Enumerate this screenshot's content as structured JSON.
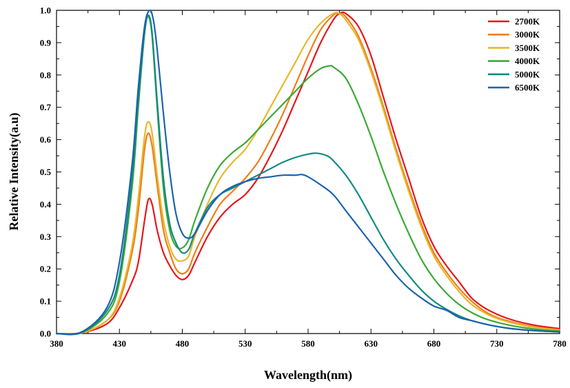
{
  "chart_data": {
    "type": "line",
    "xlabel": "Wavelength(nm)",
    "ylabel": "Relative Intensity(a.u)",
    "xlim": [
      380,
      780
    ],
    "ylim": [
      0.0,
      1.0
    ],
    "x_ticks": [
      "380",
      "430",
      "480",
      "530",
      "580",
      "630",
      "680",
      "730",
      "780"
    ],
    "y_ticks": [
      "0.0",
      "0.1",
      "0.2",
      "0.3",
      "0.4",
      "0.5",
      "0.6",
      "0.7",
      "0.8",
      "0.9",
      "1.0"
    ],
    "grid": false,
    "legend_position": "top-right",
    "series": [
      {
        "name": "2700K",
        "color": "#e8151b",
        "points": [
          [
            380,
            0.0
          ],
          [
            400,
            0.002
          ],
          [
            420,
            0.03
          ],
          [
            430,
            0.08
          ],
          [
            440,
            0.16
          ],
          [
            445,
            0.22
          ],
          [
            450,
            0.35
          ],
          [
            453,
            0.415
          ],
          [
            456,
            0.4
          ],
          [
            460,
            0.32
          ],
          [
            465,
            0.25
          ],
          [
            470,
            0.21
          ],
          [
            475,
            0.18
          ],
          [
            480,
            0.167
          ],
          [
            485,
            0.18
          ],
          [
            490,
            0.22
          ],
          [
            500,
            0.3
          ],
          [
            510,
            0.36
          ],
          [
            520,
            0.4
          ],
          [
            530,
            0.43
          ],
          [
            540,
            0.48
          ],
          [
            550,
            0.55
          ],
          [
            560,
            0.63
          ],
          [
            570,
            0.72
          ],
          [
            580,
            0.81
          ],
          [
            590,
            0.9
          ],
          [
            600,
            0.97
          ],
          [
            605,
            0.99
          ],
          [
            610,
            0.99
          ],
          [
            620,
            0.95
          ],
          [
            630,
            0.86
          ],
          [
            640,
            0.73
          ],
          [
            650,
            0.6
          ],
          [
            660,
            0.48
          ],
          [
            670,
            0.36
          ],
          [
            680,
            0.27
          ],
          [
            690,
            0.21
          ],
          [
            700,
            0.16
          ],
          [
            710,
            0.11
          ],
          [
            720,
            0.08
          ],
          [
            730,
            0.06
          ],
          [
            740,
            0.045
          ],
          [
            750,
            0.034
          ],
          [
            760,
            0.026
          ],
          [
            770,
            0.02
          ],
          [
            780,
            0.015
          ]
        ]
      },
      {
        "name": "3000K",
        "color": "#f07d16",
        "points": [
          [
            380,
            0.0
          ],
          [
            400,
            0.002
          ],
          [
            420,
            0.04
          ],
          [
            430,
            0.1
          ],
          [
            440,
            0.25
          ],
          [
            445,
            0.38
          ],
          [
            450,
            0.57
          ],
          [
            453,
            0.62
          ],
          [
            456,
            0.58
          ],
          [
            460,
            0.46
          ],
          [
            465,
            0.32
          ],
          [
            470,
            0.25
          ],
          [
            475,
            0.2
          ],
          [
            480,
            0.185
          ],
          [
            485,
            0.2
          ],
          [
            490,
            0.25
          ],
          [
            500,
            0.33
          ],
          [
            510,
            0.4
          ],
          [
            520,
            0.44
          ],
          [
            530,
            0.48
          ],
          [
            540,
            0.53
          ],
          [
            550,
            0.6
          ],
          [
            560,
            0.68
          ],
          [
            570,
            0.77
          ],
          [
            580,
            0.86
          ],
          [
            590,
            0.94
          ],
          [
            600,
            0.985
          ],
          [
            605,
            0.99
          ],
          [
            610,
            0.98
          ],
          [
            620,
            0.92
          ],
          [
            630,
            0.82
          ],
          [
            640,
            0.7
          ],
          [
            650,
            0.57
          ],
          [
            660,
            0.45
          ],
          [
            670,
            0.34
          ],
          [
            680,
            0.25
          ],
          [
            690,
            0.19
          ],
          [
            700,
            0.14
          ],
          [
            710,
            0.1
          ],
          [
            720,
            0.07
          ],
          [
            730,
            0.05
          ],
          [
            740,
            0.038
          ],
          [
            750,
            0.028
          ],
          [
            760,
            0.021
          ],
          [
            770,
            0.016
          ],
          [
            780,
            0.012
          ]
        ]
      },
      {
        "name": "3500K",
        "color": "#e6b82a",
        "points": [
          [
            380,
            0.0
          ],
          [
            400,
            0.002
          ],
          [
            420,
            0.04
          ],
          [
            430,
            0.11
          ],
          [
            440,
            0.27
          ],
          [
            445,
            0.42
          ],
          [
            450,
            0.61
          ],
          [
            453,
            0.655
          ],
          [
            456,
            0.62
          ],
          [
            460,
            0.49
          ],
          [
            465,
            0.35
          ],
          [
            470,
            0.27
          ],
          [
            475,
            0.23
          ],
          [
            480,
            0.225
          ],
          [
            485,
            0.24
          ],
          [
            490,
            0.3
          ],
          [
            500,
            0.4
          ],
          [
            510,
            0.48
          ],
          [
            520,
            0.53
          ],
          [
            530,
            0.57
          ],
          [
            540,
            0.63
          ],
          [
            550,
            0.7
          ],
          [
            560,
            0.77
          ],
          [
            570,
            0.84
          ],
          [
            580,
            0.91
          ],
          [
            590,
            0.96
          ],
          [
            600,
            0.99
          ],
          [
            605,
            0.99
          ],
          [
            610,
            0.97
          ],
          [
            620,
            0.91
          ],
          [
            630,
            0.81
          ],
          [
            640,
            0.69
          ],
          [
            650,
            0.56
          ],
          [
            660,
            0.44
          ],
          [
            670,
            0.33
          ],
          [
            680,
            0.24
          ],
          [
            690,
            0.18
          ],
          [
            700,
            0.13
          ],
          [
            710,
            0.09
          ],
          [
            720,
            0.065
          ],
          [
            730,
            0.047
          ],
          [
            740,
            0.035
          ],
          [
            750,
            0.026
          ],
          [
            760,
            0.019
          ],
          [
            770,
            0.014
          ],
          [
            780,
            0.01
          ]
        ]
      },
      {
        "name": "4000K",
        "color": "#3aa935",
        "points": [
          [
            380,
            0.0
          ],
          [
            400,
            0.003
          ],
          [
            420,
            0.06
          ],
          [
            430,
            0.16
          ],
          [
            440,
            0.45
          ],
          [
            445,
            0.7
          ],
          [
            450,
            0.93
          ],
          [
            453,
            0.98
          ],
          [
            456,
            0.92
          ],
          [
            460,
            0.7
          ],
          [
            465,
            0.45
          ],
          [
            470,
            0.32
          ],
          [
            475,
            0.27
          ],
          [
            480,
            0.265
          ],
          [
            485,
            0.29
          ],
          [
            490,
            0.35
          ],
          [
            500,
            0.45
          ],
          [
            510,
            0.52
          ],
          [
            520,
            0.56
          ],
          [
            530,
            0.59
          ],
          [
            540,
            0.63
          ],
          [
            550,
            0.67
          ],
          [
            560,
            0.71
          ],
          [
            570,
            0.75
          ],
          [
            580,
            0.79
          ],
          [
            590,
            0.82
          ],
          [
            597,
            0.828
          ],
          [
            600,
            0.825
          ],
          [
            610,
            0.79
          ],
          [
            620,
            0.71
          ],
          [
            630,
            0.61
          ],
          [
            640,
            0.5
          ],
          [
            650,
            0.4
          ],
          [
            660,
            0.31
          ],
          [
            670,
            0.23
          ],
          [
            680,
            0.17
          ],
          [
            690,
            0.125
          ],
          [
            700,
            0.09
          ],
          [
            710,
            0.065
          ],
          [
            720,
            0.047
          ],
          [
            730,
            0.035
          ],
          [
            740,
            0.026
          ],
          [
            750,
            0.019
          ],
          [
            760,
            0.014
          ],
          [
            770,
            0.01
          ],
          [
            780,
            0.008
          ]
        ]
      },
      {
        "name": "5000K",
        "color": "#138a82",
        "points": [
          [
            380,
            0.0
          ],
          [
            400,
            0.003
          ],
          [
            420,
            0.07
          ],
          [
            430,
            0.18
          ],
          [
            440,
            0.48
          ],
          [
            445,
            0.72
          ],
          [
            450,
            0.93
          ],
          [
            453,
            0.985
          ],
          [
            456,
            0.93
          ],
          [
            460,
            0.72
          ],
          [
            465,
            0.48
          ],
          [
            470,
            0.34
          ],
          [
            475,
            0.28
          ],
          [
            480,
            0.25
          ],
          [
            485,
            0.26
          ],
          [
            490,
            0.31
          ],
          [
            500,
            0.39
          ],
          [
            510,
            0.43
          ],
          [
            520,
            0.45
          ],
          [
            530,
            0.47
          ],
          [
            540,
            0.49
          ],
          [
            550,
            0.51
          ],
          [
            560,
            0.53
          ],
          [
            570,
            0.545
          ],
          [
            580,
            0.555
          ],
          [
            587,
            0.558
          ],
          [
            595,
            0.55
          ],
          [
            600,
            0.535
          ],
          [
            610,
            0.49
          ],
          [
            620,
            0.43
          ],
          [
            630,
            0.36
          ],
          [
            640,
            0.29
          ],
          [
            650,
            0.23
          ],
          [
            660,
            0.18
          ],
          [
            670,
            0.135
          ],
          [
            680,
            0.1
          ],
          [
            690,
            0.075
          ],
          [
            700,
            0.055
          ],
          [
            710,
            0.04
          ],
          [
            720,
            0.03
          ],
          [
            730,
            0.022
          ],
          [
            740,
            0.016
          ],
          [
            750,
            0.012
          ],
          [
            760,
            0.009
          ],
          [
            770,
            0.007
          ],
          [
            780,
            0.005
          ]
        ]
      },
      {
        "name": "6500K",
        "color": "#1c62ae",
        "points": [
          [
            380,
            0.0
          ],
          [
            400,
            0.005
          ],
          [
            420,
            0.08
          ],
          [
            430,
            0.22
          ],
          [
            440,
            0.52
          ],
          [
            445,
            0.76
          ],
          [
            450,
            0.95
          ],
          [
            454,
            1.0
          ],
          [
            457,
            0.97
          ],
          [
            460,
            0.88
          ],
          [
            465,
            0.68
          ],
          [
            470,
            0.5
          ],
          [
            475,
            0.37
          ],
          [
            480,
            0.31
          ],
          [
            485,
            0.295
          ],
          [
            490,
            0.31
          ],
          [
            500,
            0.38
          ],
          [
            510,
            0.43
          ],
          [
            520,
            0.455
          ],
          [
            530,
            0.47
          ],
          [
            540,
            0.48
          ],
          [
            550,
            0.485
          ],
          [
            560,
            0.49
          ],
          [
            570,
            0.49
          ],
          [
            575,
            0.492
          ],
          [
            580,
            0.485
          ],
          [
            590,
            0.46
          ],
          [
            600,
            0.43
          ],
          [
            610,
            0.38
          ],
          [
            620,
            0.33
          ],
          [
            630,
            0.28
          ],
          [
            640,
            0.23
          ],
          [
            650,
            0.18
          ],
          [
            660,
            0.14
          ],
          [
            670,
            0.11
          ],
          [
            680,
            0.085
          ],
          [
            690,
            0.072
          ],
          [
            700,
            0.05
          ],
          [
            710,
            0.04
          ],
          [
            720,
            0.03
          ],
          [
            730,
            0.022
          ],
          [
            740,
            0.016
          ],
          [
            750,
            0.012
          ],
          [
            760,
            0.009
          ],
          [
            770,
            0.007
          ],
          [
            780,
            0.005
          ]
        ]
      }
    ]
  }
}
